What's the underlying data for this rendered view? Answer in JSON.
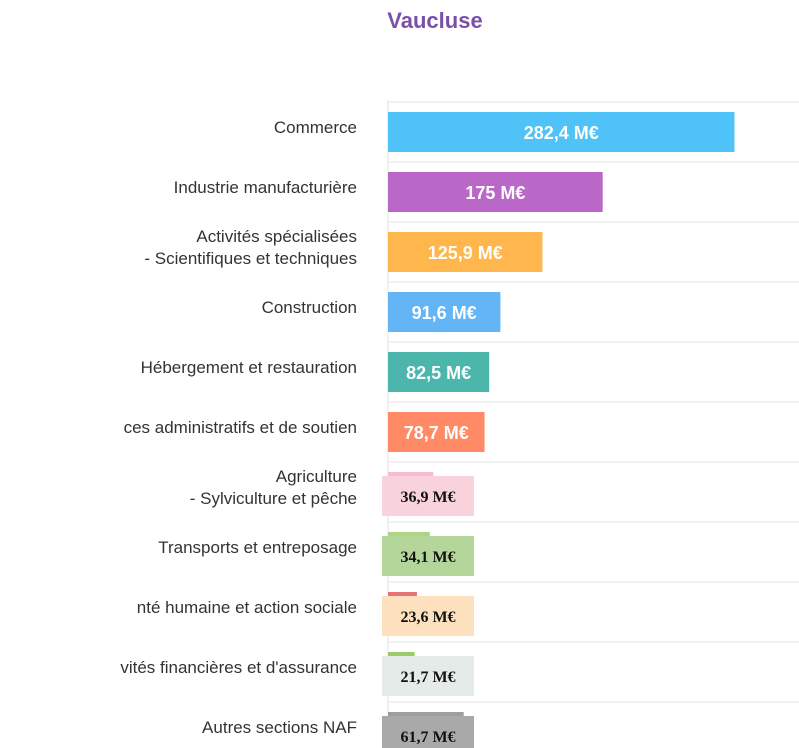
{
  "chart_data": {
    "type": "hbar",
    "title": "Vaucluse",
    "categories": [
      "Commerce",
      "Industrie manufacturière",
      "Activités spécialisées\n- Scientifiques et techniques",
      "Construction",
      "Hébergement et restauration",
      "ces administratifs et de soutien",
      "Agriculture\n- Sylviculture et pêche",
      "Transports et entreposage",
      "nté humaine et action sociale",
      "vités financières et d'assurance",
      "Autres sections NAF"
    ],
    "values": [
      282.4,
      175,
      125.9,
      91.6,
      82.5,
      78.7,
      36.9,
      34.1,
      23.6,
      21.7,
      61.7
    ],
    "value_labels": [
      "282,4 M€",
      "175 M€",
      "125,9 M€",
      "91,6 M€",
      "82,5 M€",
      "78,7 M€",
      "36,9 M€",
      "34,1 M€",
      "23,6 M€",
      "21,7 M€",
      "61,7 M€"
    ],
    "colors": [
      "#4fc3f7",
      "#ba68c8",
      "#ffb74d",
      "#64b5f6",
      "#4db6ac",
      "#ff8a65",
      "#f8bbd0",
      "#aed581",
      "#e57373",
      "#9ccc65",
      "#9e9e9e"
    ],
    "label_backgrounds": [
      null,
      null,
      null,
      null,
      null,
      null,
      "#f9d3dc",
      "#b5d69a",
      "#fde0bd",
      "#e5ebe9",
      "#a9a9a9"
    ],
    "xlim": [
      0,
      335
    ]
  }
}
